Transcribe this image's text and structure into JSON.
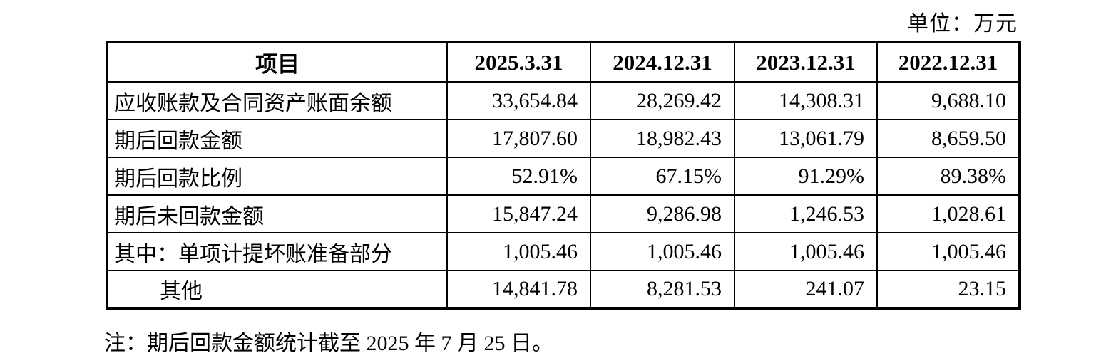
{
  "unit_label": "单位：万元",
  "table": {
    "columns": [
      "项目",
      "2025.3.31",
      "2024.12.31",
      "2023.12.31",
      "2022.12.31"
    ],
    "rows": [
      {
        "label": "应收账款及合同资产账面余额",
        "indent": false,
        "values": [
          "33,654.84",
          "28,269.42",
          "14,308.31",
          "9,688.10"
        ]
      },
      {
        "label": "期后回款金额",
        "indent": false,
        "values": [
          "17,807.60",
          "18,982.43",
          "13,061.79",
          "8,659.50"
        ]
      },
      {
        "label": "期后回款比例",
        "indent": false,
        "values": [
          "52.91%",
          "67.15%",
          "91.29%",
          "89.38%"
        ]
      },
      {
        "label": "期后未回款金额",
        "indent": false,
        "values": [
          "15,847.24",
          "9,286.98",
          "1,246.53",
          "1,028.61"
        ]
      },
      {
        "label": "其中：单项计提坏账准备部分",
        "indent": false,
        "values": [
          "1,005.46",
          "1,005.46",
          "1,005.46",
          "1,005.46"
        ]
      },
      {
        "label": "其他",
        "indent": true,
        "values": [
          "14,841.78",
          "8,281.53",
          "241.07",
          "23.15"
        ]
      }
    ]
  },
  "note": "注：期后回款金额统计截至 2025 年 7 月 25 日。"
}
